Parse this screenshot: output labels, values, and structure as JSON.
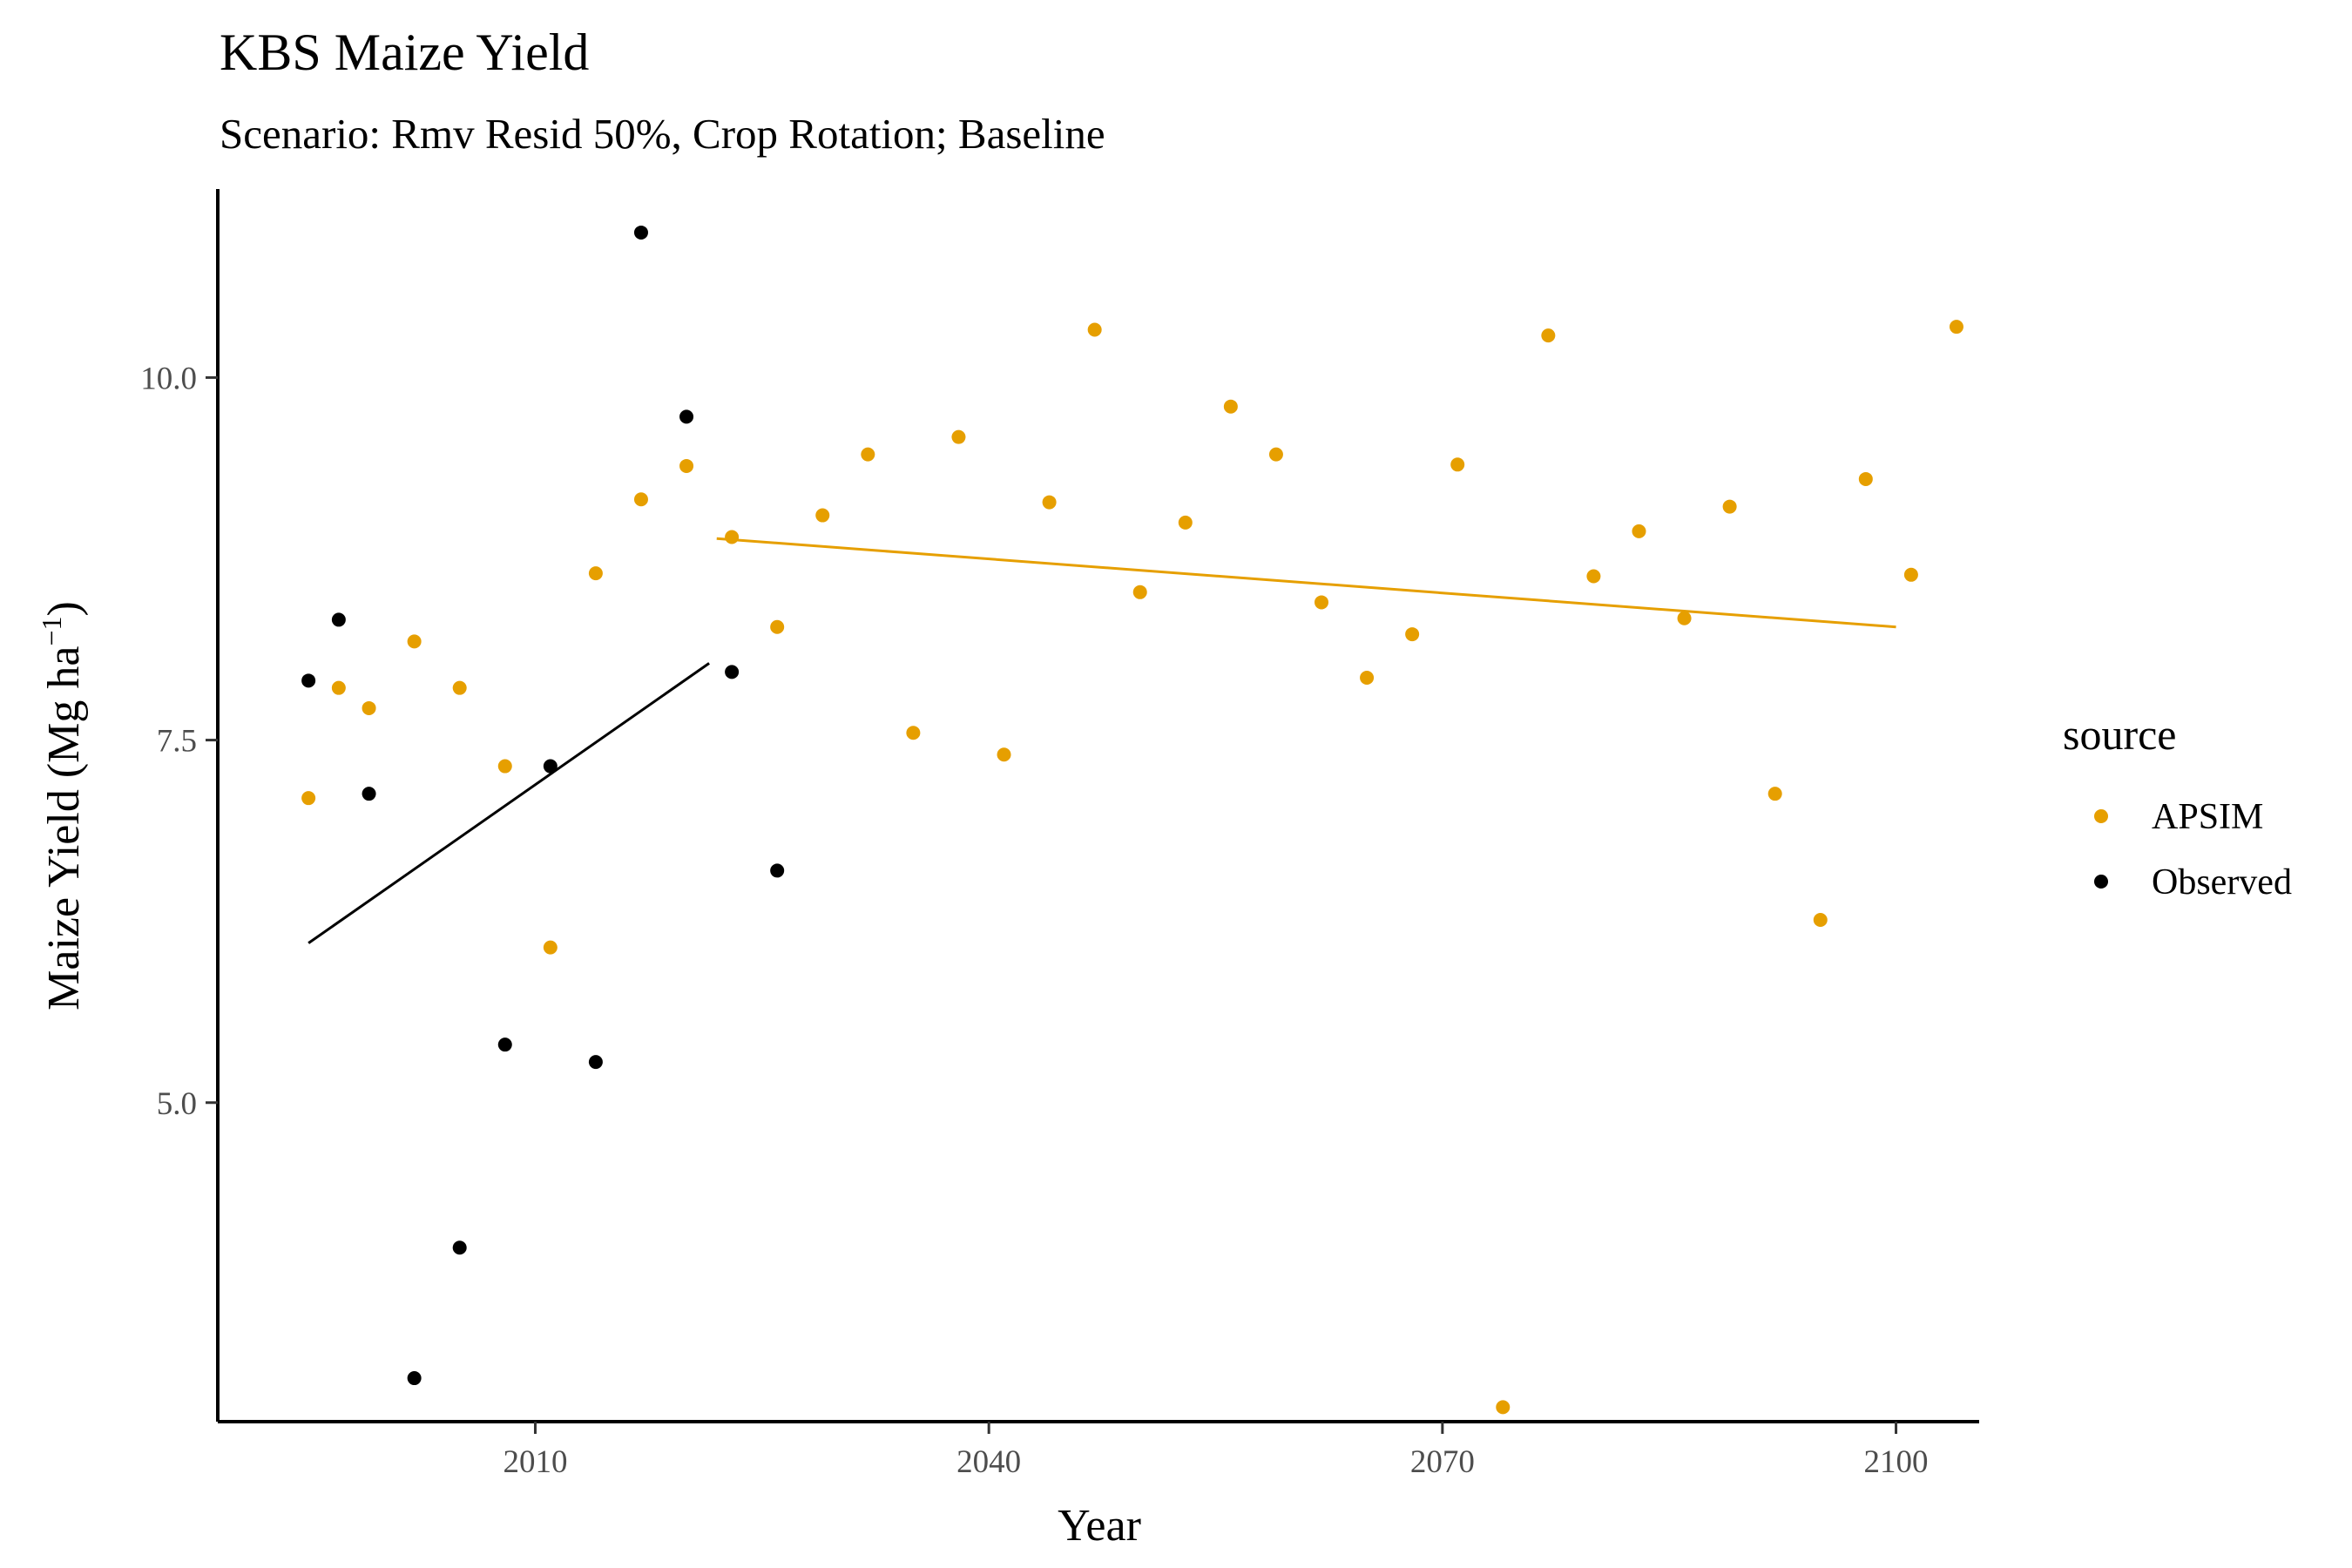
{
  "title": "KBS Maize Yield",
  "subtitle": "Scenario: Rmv Resid 50%, Crop Rotation; Baseline",
  "chart_data": {
    "type": "scatter",
    "title": "KBS Maize Yield",
    "subtitle": "Scenario: Rmv Resid 50%, Crop Rotation; Baseline",
    "xlabel": "Year",
    "ylabel": "Maize Yield (Mg ha",
    "ylabel_superscript": "−1",
    "ylabel_suffix": ")",
    "xlim": [
      1989,
      2105.5
    ],
    "ylim": [
      2.8,
      11.3
    ],
    "x_ticks": [
      2010,
      2040,
      2070,
      2100
    ],
    "x_tick_labels": [
      "2010",
      "2040",
      "2070",
      "2100"
    ],
    "y_ticks": [
      5.0,
      7.5,
      10.0
    ],
    "y_tick_labels": [
      "5.0",
      "7.5",
      "10.0"
    ],
    "grid": false,
    "legend": {
      "title": "source",
      "position": "right",
      "entries": [
        "APSIM",
        "Observed"
      ]
    },
    "series": [
      {
        "name": "APSIM",
        "color": "#E69F00",
        "points": [
          [
            1995,
            7.1
          ],
          [
            1997,
            7.86
          ],
          [
            1999,
            7.72
          ],
          [
            2002,
            8.18
          ],
          [
            2005,
            7.86
          ],
          [
            2008,
            7.32
          ],
          [
            2011,
            6.07
          ],
          [
            2014,
            8.65
          ],
          [
            2017,
            9.16
          ],
          [
            2020,
            9.39
          ],
          [
            2023,
            8.9
          ],
          [
            2026,
            8.28
          ],
          [
            2029,
            9.05
          ],
          [
            2032,
            9.47
          ],
          [
            2035,
            7.55
          ],
          [
            2038,
            9.59
          ],
          [
            2041,
            7.4
          ],
          [
            2044,
            9.14
          ],
          [
            2047,
            10.33
          ],
          [
            2050,
            8.52
          ],
          [
            2053,
            9.0
          ],
          [
            2056,
            9.8
          ],
          [
            2059,
            9.47
          ],
          [
            2062,
            8.45
          ],
          [
            2065,
            7.93
          ],
          [
            2068,
            8.23
          ],
          [
            2071,
            9.4
          ],
          [
            2074,
            2.9
          ],
          [
            2077,
            10.29
          ],
          [
            2080,
            8.63
          ],
          [
            2083,
            8.94
          ],
          [
            2086,
            8.34
          ],
          [
            2089,
            9.11
          ],
          [
            2092,
            7.13
          ],
          [
            2095,
            6.26
          ],
          [
            2098,
            9.3
          ],
          [
            2101,
            8.64
          ],
          [
            2104,
            10.35
          ]
        ],
        "trend": {
          "x": [
            2022,
            2100
          ],
          "y": [
            8.89,
            8.28
          ]
        }
      },
      {
        "name": "Observed",
        "color": "#000000",
        "points": [
          [
            1995,
            7.91
          ],
          [
            1997,
            8.33
          ],
          [
            1999,
            7.13
          ],
          [
            2002,
            3.1
          ],
          [
            2005,
            4.0
          ],
          [
            2008,
            5.4
          ],
          [
            2011,
            7.32
          ],
          [
            2014,
            5.28
          ],
          [
            2017,
            11.0
          ],
          [
            2020,
            9.73
          ],
          [
            2023,
            7.97
          ],
          [
            2026,
            6.6
          ]
        ],
        "trend": {
          "x": [
            1995,
            2021.5
          ],
          "y": [
            6.1,
            8.03
          ]
        }
      }
    ]
  }
}
